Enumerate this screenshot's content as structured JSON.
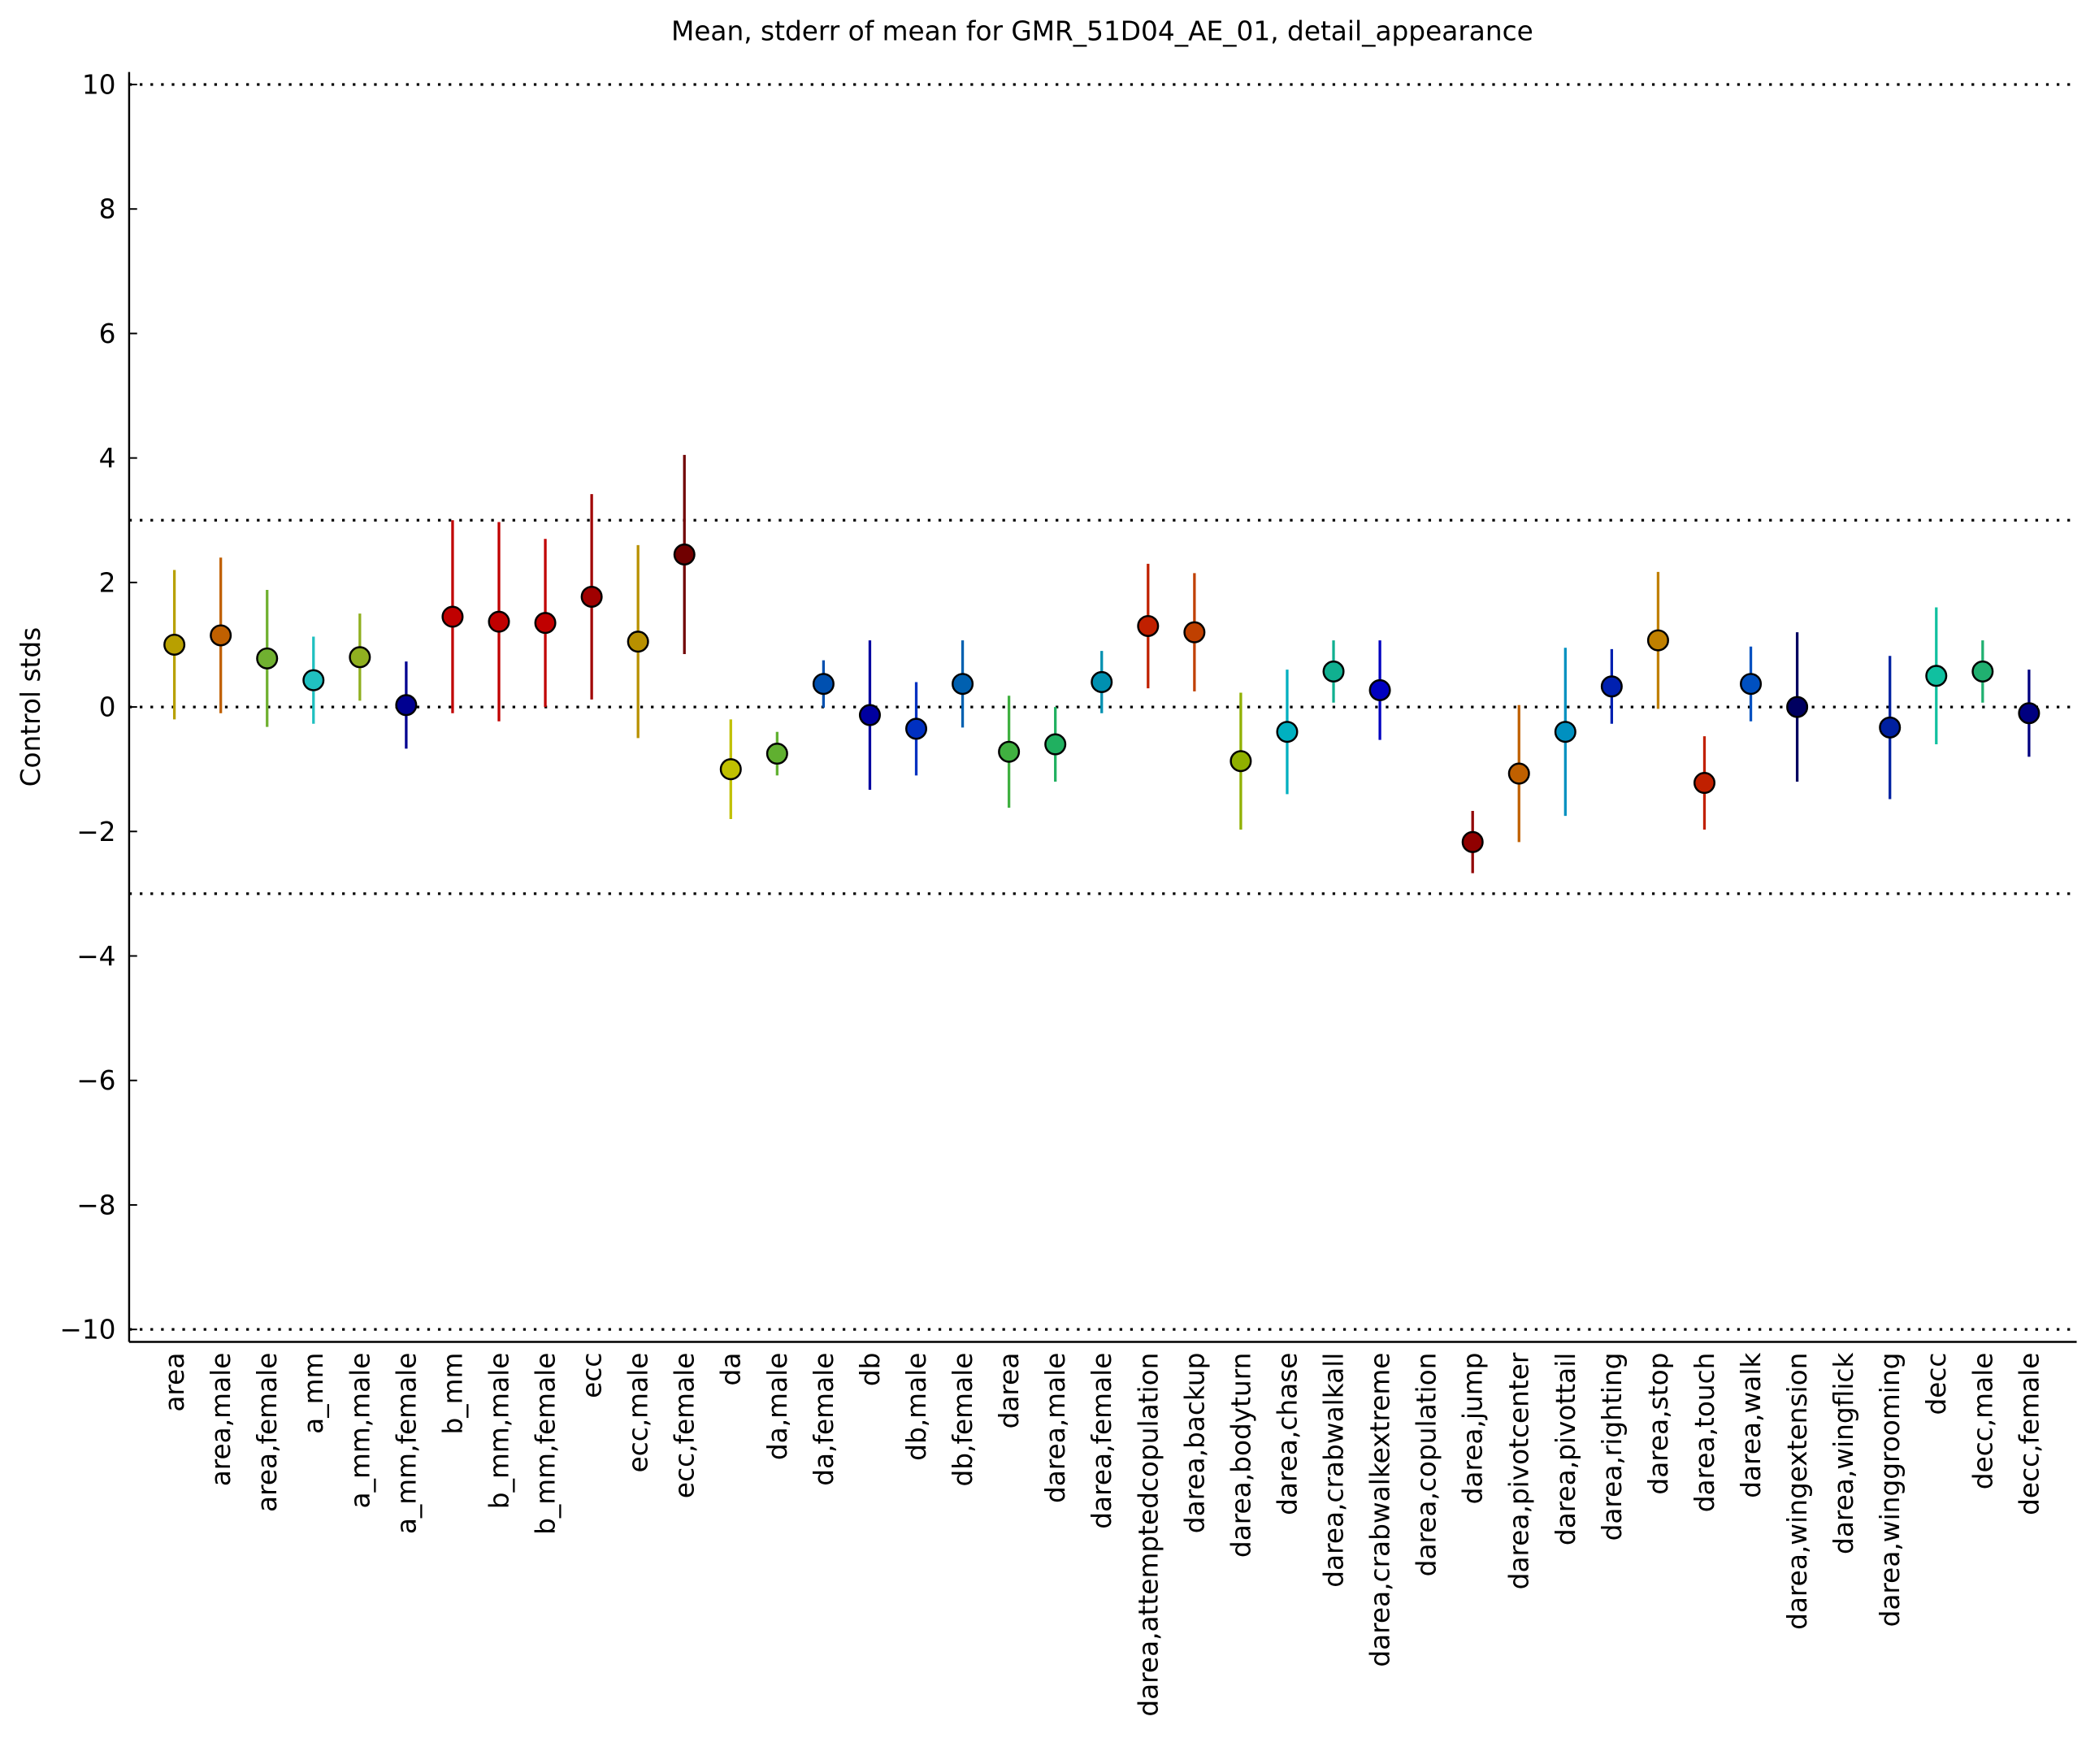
{
  "chart_data": {
    "type": "errorbar",
    "title": "Mean, stderr of mean for GMR_51D04_AE_01, detail_appearance",
    "y_label": "Control stds",
    "categories": [
      "area",
      "area,male",
      "area,female",
      "a_mm",
      "a_mm,male",
      "a_mm,female",
      "b_mm",
      "b_mm,male",
      "b_mm,female",
      "ecc",
      "ecc,male",
      "ecc,female",
      "da",
      "da,male",
      "da,female",
      "db",
      "db,male",
      "db,female",
      "darea",
      "darea,male",
      "darea,female",
      "darea,attemptedcopulation",
      "darea,backup",
      "darea,bodyturn",
      "darea,chase",
      "darea,crabwalkall",
      "darea,crabwalkextreme",
      "darea,copulation",
      "darea,jump",
      "darea,pivotcenter",
      "darea,pivottail",
      "darea,righting",
      "darea,stop",
      "darea,touch",
      "darea,walk",
      "darea,wingextension",
      "darea,wingflick",
      "darea,winggrooming",
      "decc",
      "decc,male",
      "decc,female"
    ],
    "series": [
      {
        "values": [
          1.0,
          1.15,
          0.78,
          0.43,
          0.8,
          0.03,
          1.45,
          1.37,
          1.35,
          1.77,
          1.05,
          2.45,
          -1.0,
          -0.75,
          0.37,
          -0.13,
          -0.35,
          0.37,
          -0.72,
          -0.6,
          0.4,
          1.3,
          1.2,
          -0.87,
          -0.4,
          0.57,
          0.27,
          null,
          -2.17,
          -1.07,
          -0.4,
          0.33,
          1.07,
          -1.22,
          0.37,
          0.0,
          null,
          -0.33,
          0.5,
          0.57,
          -0.1
        ],
        "errors": [
          1.2,
          1.25,
          1.1,
          0.7,
          0.7,
          0.7,
          1.55,
          1.6,
          1.35,
          1.65,
          1.55,
          1.6,
          0.8,
          0.35,
          0.38,
          1.2,
          0.75,
          0.7,
          0.9,
          0.6,
          0.5,
          1.0,
          0.95,
          1.1,
          1.0,
          0.5,
          0.8,
          null,
          0.5,
          1.1,
          1.35,
          0.6,
          1.1,
          0.75,
          0.6,
          1.2,
          null,
          1.15,
          1.1,
          0.5,
          0.7
        ]
      }
    ],
    "colors": [
      "#b8a000",
      "#c06000",
      "#70b030",
      "#20c0c0",
      "#90b020",
      "#000090",
      "#c00000",
      "#c00000",
      "#c00000",
      "#a00000",
      "#b89000",
      "#700000",
      "#c0c000",
      "#60b030",
      "#0050b0",
      "#0000a0",
      "#0030c0",
      "#0060b0",
      "#40b040",
      "#20b060",
      "#0090b0",
      "#c02000",
      "#c04000",
      "#90b000",
      "#00b0c0",
      "#10b090",
      "#0000c0",
      "#909090",
      "#900000",
      "#c06000",
      "#0090c0",
      "#0020b0",
      "#c08000",
      "#c02000",
      "#0050c0",
      "#000060",
      "#909090",
      "#0020a0",
      "#10c0a0",
      "#20b070",
      "#000080"
    ],
    "ylim": [
      -10.2,
      10.2
    ],
    "yticks": [
      {
        "value": -10,
        "label": "−10"
      },
      {
        "value": -8,
        "label": "−8"
      },
      {
        "value": -6,
        "label": "−6"
      },
      {
        "value": -4,
        "label": "−4"
      },
      {
        "value": -2,
        "label": "−2"
      },
      0,
      2,
      4,
      6,
      8,
      10
    ],
    "reference_lines": [
      10,
      3,
      0,
      -3,
      -10
    ]
  }
}
